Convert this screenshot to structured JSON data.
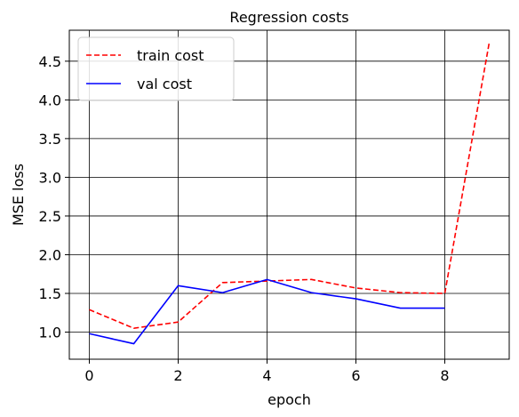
{
  "chart_data": {
    "type": "line",
    "title": "Regression costs",
    "xlabel": "epoch",
    "ylabel": "MSE loss",
    "xlim": [
      -0.45,
      9.45
    ],
    "ylim": [
      0.65,
      4.9
    ],
    "xticks": [
      0,
      2,
      4,
      6,
      8
    ],
    "xtick_labels": [
      "0",
      "2",
      "4",
      "6",
      "8"
    ],
    "yticks": [
      1.0,
      1.5,
      2.0,
      2.5,
      3.0,
      3.5,
      4.0,
      4.5
    ],
    "ytick_labels": [
      "1.0",
      "1.5",
      "2.0",
      "2.5",
      "3.0",
      "3.5",
      "4.0",
      "4.5"
    ],
    "grid": true,
    "legend_position": "top-left",
    "series": [
      {
        "name": "train cost",
        "color": "#ff0000",
        "style": "dashed",
        "x": [
          0,
          1,
          2,
          3,
          4,
          5,
          6,
          7,
          8,
          9
        ],
        "values": [
          1.29,
          1.05,
          1.13,
          1.64,
          1.66,
          1.68,
          1.57,
          1.51,
          1.5,
          4.74
        ]
      },
      {
        "name": "val cost",
        "color": "#0000ff",
        "style": "solid",
        "x": [
          0,
          1,
          2,
          3,
          4,
          5,
          6,
          7,
          8
        ],
        "values": [
          0.98,
          0.85,
          1.6,
          1.51,
          1.68,
          1.51,
          1.43,
          1.31,
          1.31
        ]
      }
    ]
  }
}
